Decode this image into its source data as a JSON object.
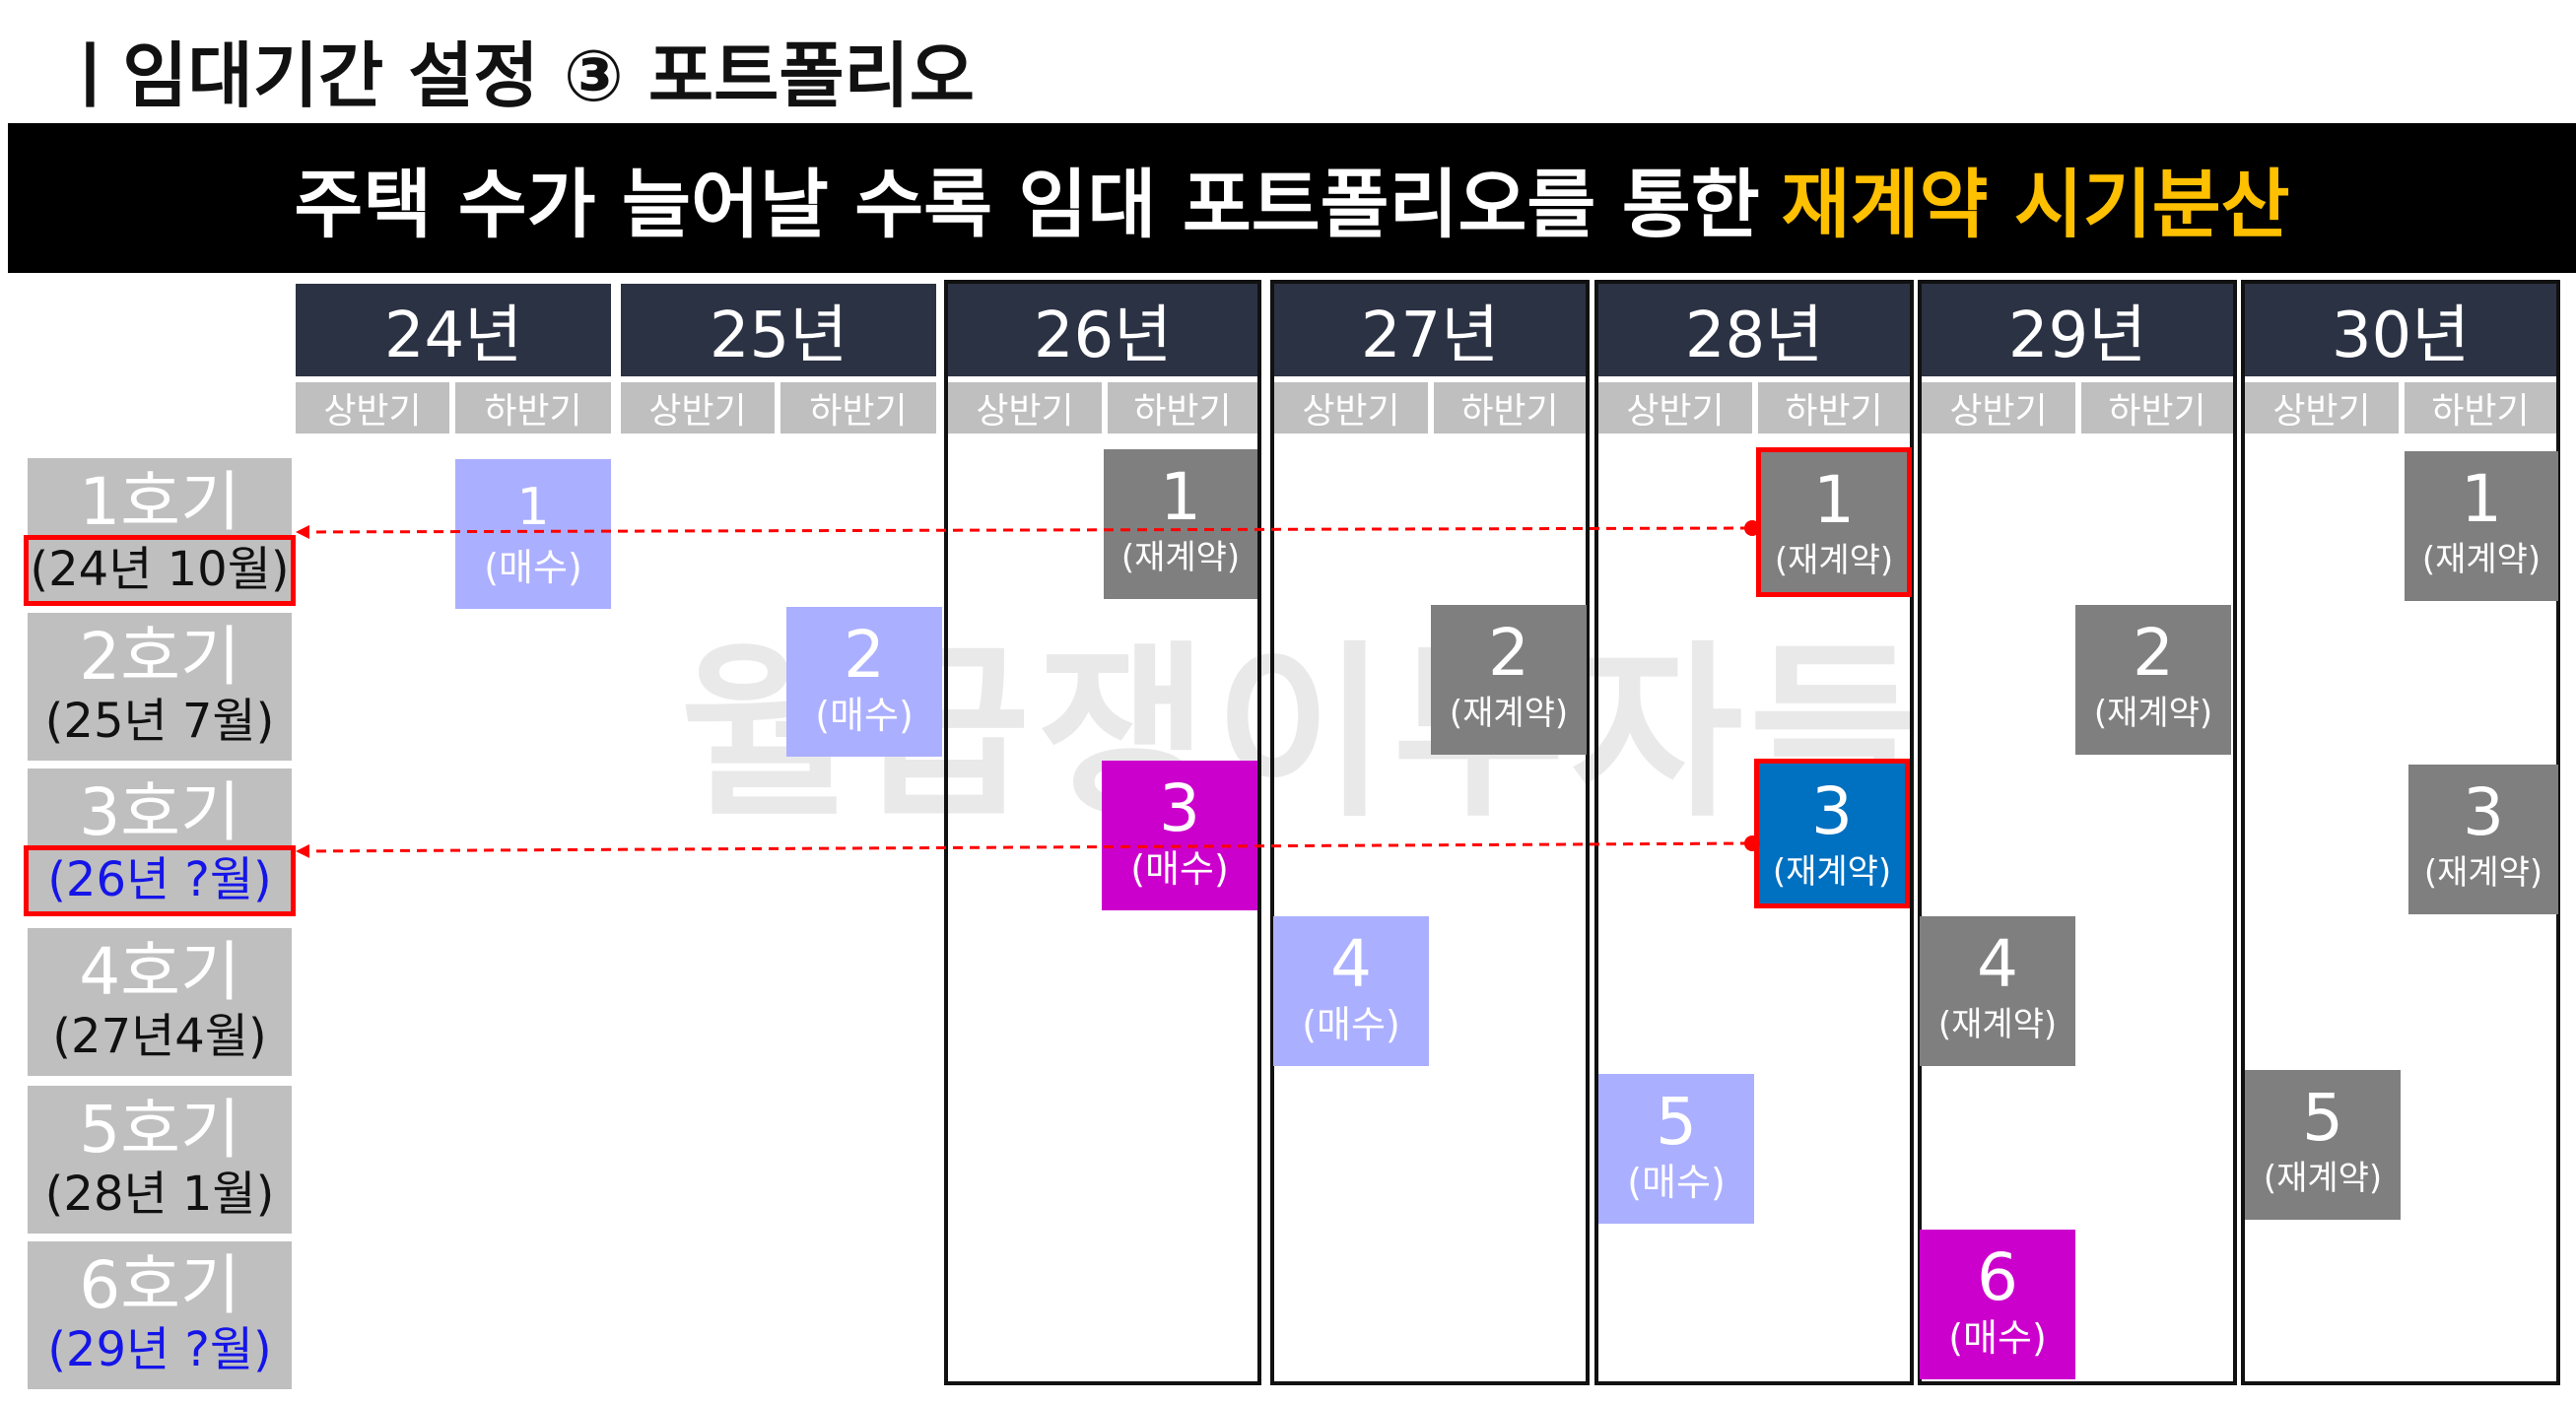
{
  "header": {
    "title": "ㅣ임대기간 설정 ③ 포트폴리오"
  },
  "banner": {
    "text": "주택 수가 늘어날 수록 임대 포트폴리오를 통한",
    "highlight": "재계약 시기분산",
    "highlight_color": "#FFC000"
  },
  "watermark": "월급쟁이부자들",
  "years": [
    "24년",
    "25년",
    "26년",
    "27년",
    "28년",
    "29년",
    "30년"
  ],
  "halves": [
    "상반기",
    "하반기"
  ],
  "rows": [
    {
      "name": "1호기",
      "date": "(24년 10월)"
    },
    {
      "name": "2호기",
      "date": "(25년 7월)"
    },
    {
      "name": "3호기",
      "date": "(26년 ?월)"
    },
    {
      "name": "4호기",
      "date": "(27년4월)"
    },
    {
      "name": "5호기",
      "date": "(28년 1월)"
    },
    {
      "name": "6호기",
      "date": "(29년 ?월)"
    }
  ],
  "cells": [
    {
      "num": "1",
      "label": "(매수)"
    },
    {
      "num": "1",
      "label": "(재계약)"
    },
    {
      "num": "1",
      "label": "(재계약)"
    },
    {
      "num": "1",
      "label": "(재계약)"
    },
    {
      "num": "2",
      "label": "(매수)"
    },
    {
      "num": "2",
      "label": "(재계약)"
    },
    {
      "num": "2",
      "label": "(재계약)"
    },
    {
      "num": "3",
      "label": "(매수)"
    },
    {
      "num": "3",
      "label": "(재계약)"
    },
    {
      "num": "3",
      "label": "(재계약)"
    },
    {
      "num": "4",
      "label": "(매수)"
    },
    {
      "num": "4",
      "label": "(재계약)"
    },
    {
      "num": "5",
      "label": "(매수)"
    },
    {
      "num": "5",
      "label": "(재계약)"
    },
    {
      "num": "6",
      "label": "(매수)"
    }
  ],
  "colors": {
    "year_header": "#2B3244",
    "half_header": "#BFBFBF",
    "purchase_light": "#ABAFFF",
    "purchase_magenta": "#CC00CC",
    "recontract_gray": "#7F7F7F",
    "recontract_blue": "#0070C0",
    "highlight_border": "#FF0000",
    "unknown_date": "#1515E8"
  }
}
